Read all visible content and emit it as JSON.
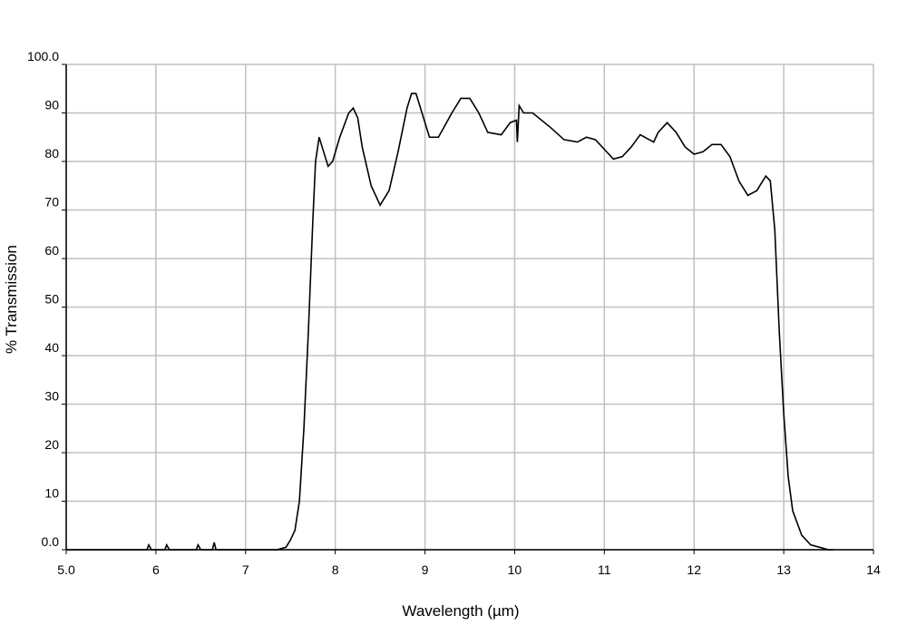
{
  "chart_data": {
    "type": "line",
    "xlabel": "Wavelength (µm)",
    "ylabel": "% Transmission",
    "xlim": [
      5,
      14
    ],
    "ylim": [
      0,
      100
    ],
    "xticks": [
      {
        "value": 5,
        "label": "5.0"
      },
      6,
      7,
      8,
      9,
      10,
      11,
      12,
      13,
      14
    ],
    "yticks": [
      {
        "value": 0,
        "label": "0.0"
      },
      10,
      20,
      30,
      40,
      50,
      60,
      70,
      80,
      90,
      {
        "value": 100,
        "label": "100.0"
      }
    ],
    "grid": true,
    "series": [
      {
        "name": "Transmission",
        "color": "#000000",
        "x": [
          5.0,
          5.9,
          5.92,
          5.95,
          6.1,
          6.12,
          6.15,
          6.45,
          6.47,
          6.5,
          6.63,
          6.65,
          6.67,
          7.35,
          7.45,
          7.5,
          7.55,
          7.6,
          7.65,
          7.7,
          7.75,
          7.78,
          7.82,
          7.87,
          7.92,
          7.97,
          8.05,
          8.15,
          8.2,
          8.25,
          8.3,
          8.4,
          8.5,
          8.6,
          8.7,
          8.8,
          8.85,
          8.9,
          8.95,
          9.05,
          9.15,
          9.3,
          9.4,
          9.5,
          9.6,
          9.7,
          9.85,
          9.95,
          10.02,
          10.03,
          10.05,
          10.1,
          10.2,
          10.4,
          10.55,
          10.7,
          10.8,
          10.9,
          11.0,
          11.1,
          11.2,
          11.3,
          11.4,
          11.5,
          11.55,
          11.6,
          11.7,
          11.8,
          11.9,
          12.0,
          12.1,
          12.2,
          12.3,
          12.4,
          12.5,
          12.6,
          12.7,
          12.8,
          12.85,
          12.9,
          12.95,
          13.0,
          13.05,
          13.1,
          13.2,
          13.3,
          13.4,
          13.5,
          13.55
        ],
        "values": [
          0,
          0,
          1,
          0,
          0,
          1,
          0,
          0,
          1,
          0,
          0,
          1.5,
          0,
          0,
          0.5,
          2,
          4,
          10,
          25,
          45,
          68,
          80,
          85,
          82,
          79,
          80,
          85,
          90,
          91,
          89,
          83,
          75,
          71,
          74,
          82,
          91,
          94,
          94,
          91,
          85,
          85,
          90,
          93,
          93,
          90,
          86,
          85.5,
          88,
          88.5,
          84,
          91.5,
          90,
          90,
          87,
          84.5,
          84,
          85,
          84.5,
          82.5,
          80.5,
          81,
          83,
          85.5,
          84.5,
          84,
          86,
          88,
          86,
          83,
          81.5,
          82,
          83.5,
          83.5,
          81,
          76,
          73,
          74,
          77,
          76,
          66,
          45,
          28,
          15,
          8,
          3,
          1,
          0.5,
          0,
          0
        ]
      }
    ]
  }
}
